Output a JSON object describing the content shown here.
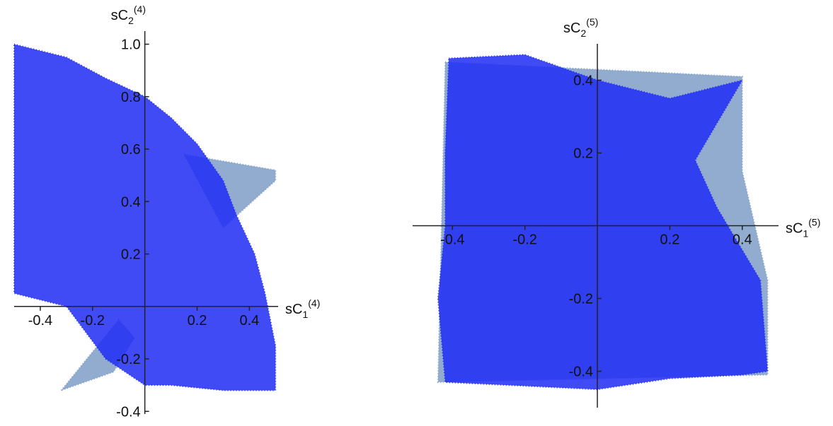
{
  "chart_data": [
    {
      "type": "scatter",
      "xlabel": {
        "base": "sC",
        "sub": "1",
        "sup": "(4)"
      },
      "ylabel": {
        "base": "sC",
        "sub": "2",
        "sup": "(4)"
      },
      "xlim": [
        -0.5,
        0.51
      ],
      "ylim": [
        -0.41,
        1.05
      ],
      "xticks": [
        -0.4,
        -0.2,
        0.2,
        0.4
      ],
      "yticks": [
        -0.4,
        -0.2,
        0.2,
        0.4,
        0.6,
        0.8,
        {
          "value": 1,
          "label": "1.0"
        }
      ],
      "series": [
        {
          "color": "#7f9dc8",
          "x": [
            0.15,
            0.5,
            0.5,
            0.3,
            null,
            -0.32,
            -0.1,
            -0.04,
            -0.12
          ],
          "y": [
            0.58,
            0.52,
            0.48,
            0.3,
            null,
            -0.32,
            -0.05,
            -0.12,
            -0.25
          ]
        },
        {
          "color": "#1f2cf5",
          "x": [
            -0.5,
            -0.3,
            -0.15,
            0,
            0.1,
            0.2,
            0.3,
            0.35,
            0.42,
            0.46,
            0.5,
            0.5,
            0.3,
            0.1,
            0,
            -0.15,
            -0.3,
            -0.5
          ],
          "y": [
            1.0,
            0.95,
            0.87,
            0.8,
            0.72,
            0.62,
            0.48,
            0.35,
            0.2,
            0.05,
            -0.15,
            -0.32,
            -0.32,
            -0.3,
            -0.3,
            -0.2,
            0,
            0.05
          ]
        }
      ]
    },
    {
      "type": "scatter",
      "xlabel": {
        "base": "sC",
        "sub": "1",
        "sup": "(5)"
      },
      "ylabel": {
        "base": "sC",
        "sub": "2",
        "sup": "(5)"
      },
      "xlim": [
        -0.51,
        0.5
      ],
      "ylim": [
        -0.5,
        0.5
      ],
      "xticks": [
        -0.4,
        -0.2,
        0.2,
        0.4
      ],
      "yticks": [
        -0.4,
        -0.2,
        0.2,
        0.4
      ],
      "series": [
        {
          "color": "#7f9dc8",
          "x": [
            -0.42,
            0.4,
            0.4,
            0.47,
            0.47,
            -0.44
          ],
          "y": [
            0.45,
            0.41,
            0.15,
            -0.15,
            -0.41,
            -0.43
          ]
        },
        {
          "color": "#1f2cf5",
          "x": [
            -0.41,
            -0.2,
            0,
            0.2,
            0.4,
            0.27,
            0.33,
            0.45,
            0.47,
            0.4,
            0.2,
            0,
            -0.42,
            -0.44,
            -0.42,
            -0.42
          ],
          "y": [
            0.46,
            0.47,
            0.4,
            0.35,
            0.4,
            0.18,
            0.05,
            -0.15,
            -0.4,
            -0.41,
            -0.42,
            -0.45,
            -0.43,
            -0.2,
            0,
            0.2
          ]
        }
      ]
    }
  ]
}
